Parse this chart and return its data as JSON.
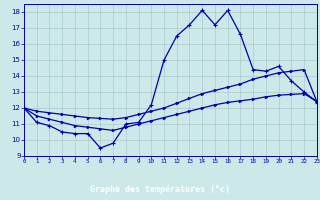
{
  "xlabel": "Graphe des températures (°c)",
  "background_color": "#cce8e8",
  "line_color": "#0000aa",
  "grid_color": "#aacccc",
  "x_hours": [
    0,
    1,
    2,
    3,
    4,
    5,
    6,
    7,
    8,
    9,
    10,
    11,
    12,
    13,
    14,
    15,
    16,
    17,
    18,
    19,
    20,
    21,
    22,
    23
  ],
  "temp_main": [
    12.0,
    11.1,
    10.9,
    10.5,
    10.4,
    10.4,
    9.5,
    9.8,
    11.0,
    11.1,
    12.2,
    15.0,
    16.5,
    17.2,
    18.1,
    17.2,
    18.1,
    16.6,
    14.4,
    14.3,
    14.6,
    13.7,
    13.0,
    12.4
  ],
  "temp_upper": [
    12.0,
    11.8,
    11.7,
    11.6,
    11.5,
    11.4,
    11.35,
    11.3,
    11.4,
    11.6,
    11.8,
    12.0,
    12.3,
    12.6,
    12.9,
    13.1,
    13.3,
    13.5,
    13.8,
    14.0,
    14.2,
    14.3,
    14.4,
    12.4
  ],
  "temp_lower": [
    12.0,
    11.5,
    11.3,
    11.1,
    10.9,
    10.8,
    10.7,
    10.6,
    10.8,
    11.0,
    11.2,
    11.4,
    11.6,
    11.8,
    12.0,
    12.2,
    12.35,
    12.45,
    12.55,
    12.7,
    12.8,
    12.85,
    12.9,
    12.4
  ],
  "ylim": [
    9,
    18.5
  ],
  "yticks": [
    9,
    10,
    11,
    12,
    13,
    14,
    15,
    16,
    17,
    18
  ],
  "xlim": [
    0,
    23
  ],
  "xticks": [
    0,
    1,
    2,
    3,
    4,
    5,
    6,
    7,
    8,
    9,
    10,
    11,
    12,
    13,
    14,
    15,
    16,
    17,
    18,
    19,
    20,
    21,
    22,
    23
  ],
  "xlabel_bg": "#0000aa",
  "xlabel_fg": "#ffffff"
}
